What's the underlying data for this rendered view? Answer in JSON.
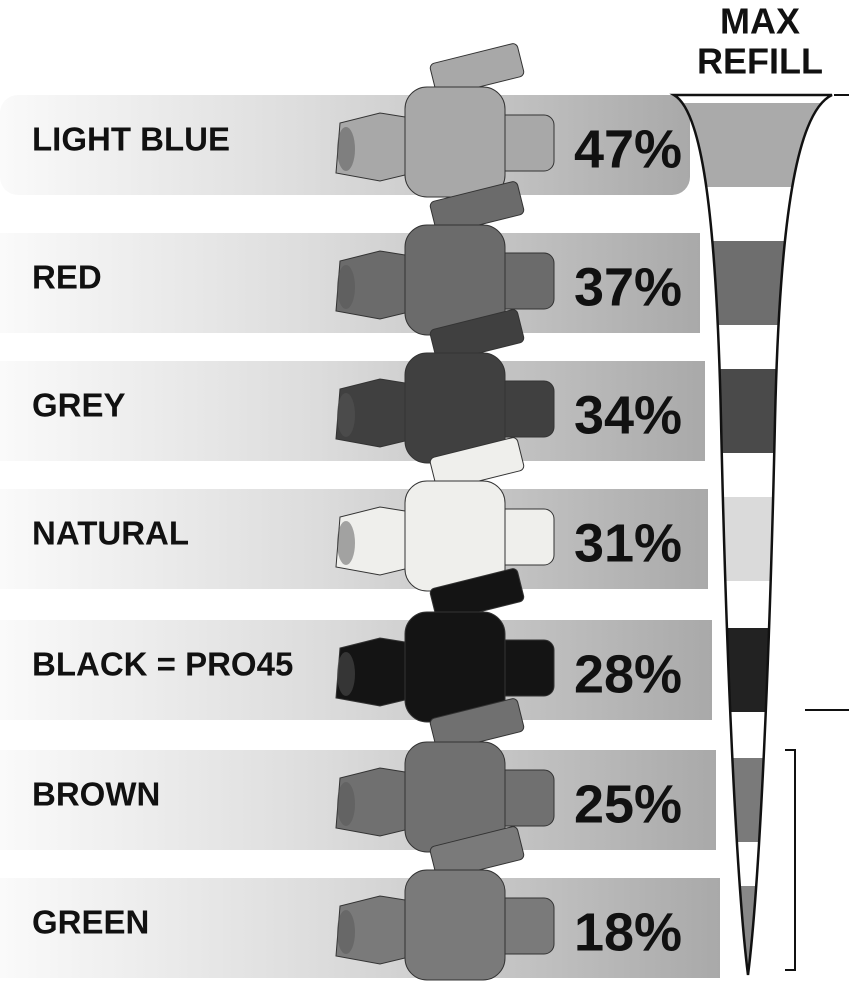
{
  "header": {
    "title": [
      "MAX",
      "REFILL"
    ]
  },
  "rows": [
    {
      "label": "LIGHT BLUE",
      "value": "47%"
    },
    {
      "label": "RED",
      "value": "37%"
    },
    {
      "label": "GREY",
      "value": "34%"
    },
    {
      "label": "NATURAL",
      "value": "31%"
    },
    {
      "label": "BLACK = PRO45",
      "value": "28%"
    },
    {
      "label": "BROWN",
      "value": "25%"
    },
    {
      "label": "GREEN",
      "value": "18%"
    }
  ]
}
